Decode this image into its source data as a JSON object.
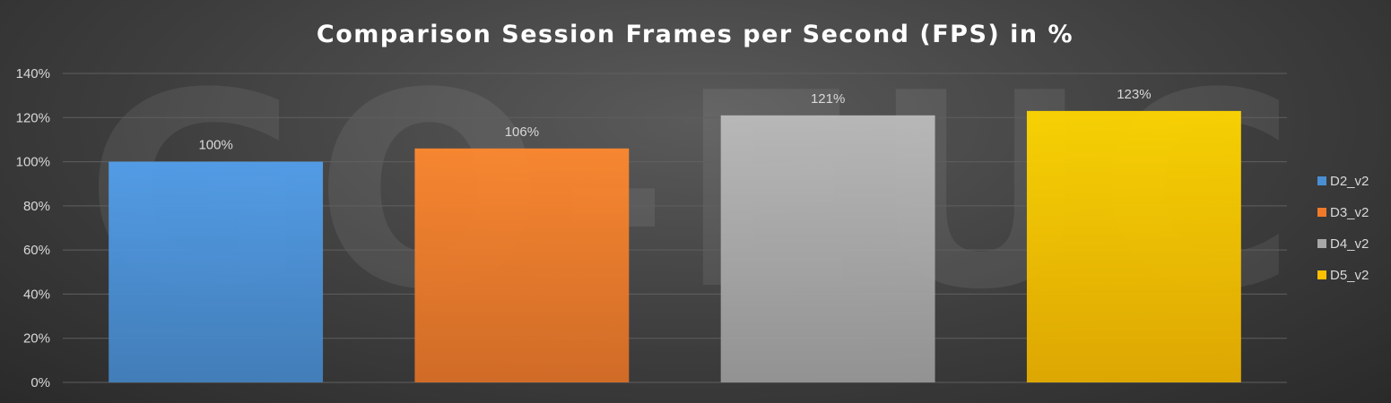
{
  "watermark_text": "GO-EUC",
  "chart_data": {
    "type": "bar",
    "title": "Comparison Session Frames per Second (FPS) in %",
    "xlabel": "",
    "ylabel": "",
    "ylim": [
      0,
      140
    ],
    "y_ticks": [
      "0%",
      "20%",
      "40%",
      "60%",
      "80%",
      "100%",
      "120%",
      "140%"
    ],
    "y_tick_values": [
      0,
      20,
      40,
      60,
      80,
      100,
      120,
      140
    ],
    "grid": true,
    "legend_position": "right",
    "series": [
      {
        "name": "D2_v2",
        "value": 100,
        "label": "100%",
        "color": "#4a8fd4"
      },
      {
        "name": "D3_v2",
        "value": 106,
        "label": "106%",
        "color": "#f07a2a"
      },
      {
        "name": "D4_v2",
        "value": 121,
        "label": "121%",
        "color": "#a8a8a8"
      },
      {
        "name": "D5_v2",
        "value": 123,
        "label": "123%",
        "color": "#ffc000"
      }
    ]
  }
}
